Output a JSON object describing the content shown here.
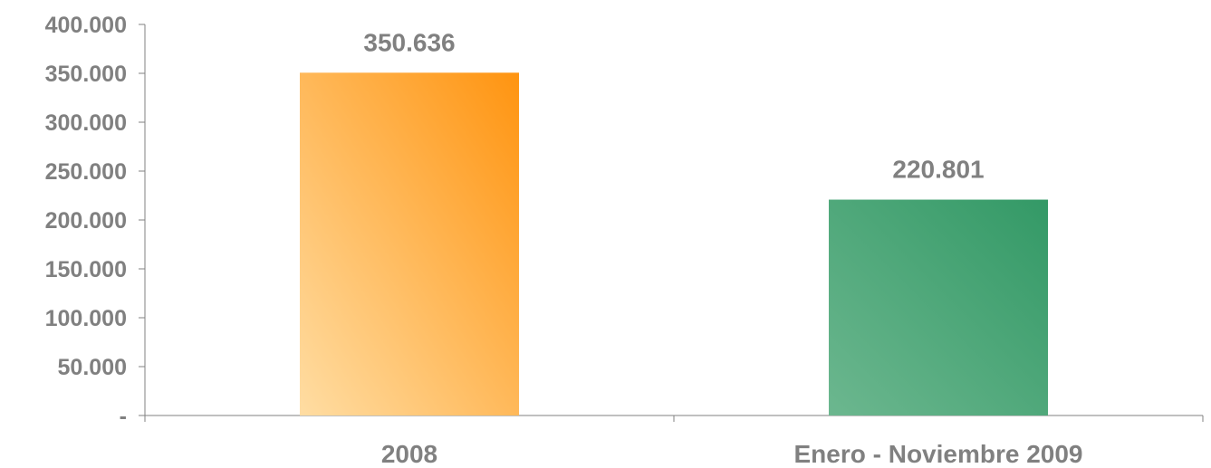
{
  "chart_data": {
    "type": "bar",
    "title": "",
    "xlabel": "",
    "ylabel": "",
    "categories": [
      "2008",
      "Enero - Noviembre 2009"
    ],
    "values": [
      350636,
      220801
    ],
    "data_labels": [
      "350.636",
      "220.801"
    ],
    "ylim": [
      0,
      400000
    ],
    "yticks": [
      0,
      50000,
      100000,
      150000,
      200000,
      250000,
      300000,
      350000,
      400000
    ],
    "ytick_labels": [
      "-",
      "50.000",
      "100.000",
      "150.000",
      "200.000",
      "250.000",
      "300.000",
      "350.000",
      "400.000"
    ],
    "grid": false,
    "legend": "none",
    "bar_colors": [
      {
        "light": "#ffdda3",
        "dark": "#ff9410"
      },
      {
        "light": "#6cb78f",
        "dark": "#339966"
      }
    ],
    "axis_color": "#808080",
    "text_color": "#808080"
  }
}
